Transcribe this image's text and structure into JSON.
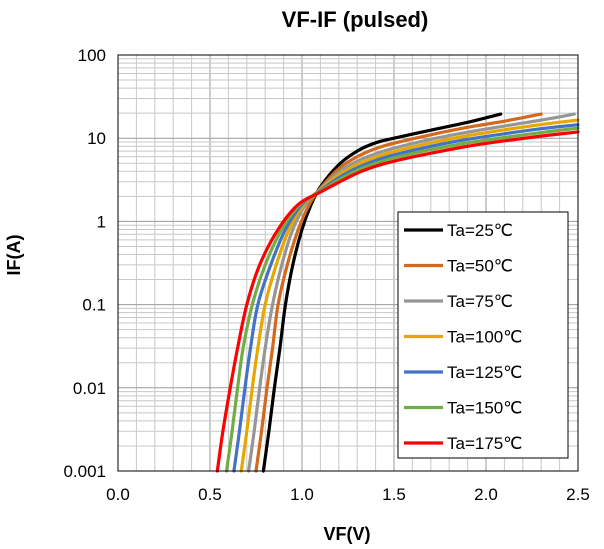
{
  "chart_data": {
    "type": "line",
    "title": "VF-IF (pulsed)",
    "xlabel": "VF(V)",
    "ylabel": "IF(A)",
    "xlim": [
      0.0,
      2.5
    ],
    "ylim": [
      0.001,
      100
    ],
    "yscale": "log",
    "grid": true,
    "legend_position": "lower-right",
    "x_ticks": [
      "0.0",
      "0.5",
      "1.0",
      "1.5",
      "2.0",
      "2.5"
    ],
    "y_ticks": [
      "0.001",
      "0.01",
      "0.1",
      "1",
      "10",
      "100"
    ],
    "series": [
      {
        "name": "Ta=25℃",
        "color": "#000000",
        "points": [
          [
            0.79,
            0.001
          ],
          [
            0.82,
            0.003
          ],
          [
            0.85,
            0.01
          ],
          [
            0.88,
            0.03
          ],
          [
            0.91,
            0.1
          ],
          [
            0.95,
            0.3
          ],
          [
            1.0,
            0.8
          ],
          [
            1.05,
            1.6
          ],
          [
            1.1,
            2.6
          ],
          [
            1.2,
            4.8
          ],
          [
            1.3,
            7.0
          ],
          [
            1.4,
            8.8
          ],
          [
            1.5,
            10.0
          ],
          [
            1.7,
            12.5
          ],
          [
            1.9,
            15.5
          ],
          [
            2.08,
            19.5
          ]
        ]
      },
      {
        "name": "Ta=50℃",
        "color": "#d2691e",
        "points": [
          [
            0.75,
            0.001
          ],
          [
            0.78,
            0.003
          ],
          [
            0.81,
            0.01
          ],
          [
            0.84,
            0.03
          ],
          [
            0.87,
            0.1
          ],
          [
            0.92,
            0.3
          ],
          [
            0.98,
            0.8
          ],
          [
            1.04,
            1.6
          ],
          [
            1.1,
            2.5
          ],
          [
            1.2,
            4.3
          ],
          [
            1.3,
            6.0
          ],
          [
            1.4,
            7.5
          ],
          [
            1.5,
            8.7
          ],
          [
            1.7,
            11.0
          ],
          [
            1.9,
            13.5
          ],
          [
            2.1,
            16.0
          ],
          [
            2.3,
            19.5
          ]
        ]
      },
      {
        "name": "Ta=75℃",
        "color": "#969696",
        "points": [
          [
            0.71,
            0.001
          ],
          [
            0.74,
            0.003
          ],
          [
            0.77,
            0.01
          ],
          [
            0.8,
            0.03
          ],
          [
            0.84,
            0.1
          ],
          [
            0.89,
            0.3
          ],
          [
            0.95,
            0.8
          ],
          [
            1.02,
            1.6
          ],
          [
            1.1,
            2.45
          ],
          [
            1.2,
            3.9
          ],
          [
            1.3,
            5.3
          ],
          [
            1.4,
            6.5
          ],
          [
            1.5,
            7.6
          ],
          [
            1.7,
            9.7
          ],
          [
            1.9,
            11.8
          ],
          [
            2.1,
            14.0
          ],
          [
            2.3,
            16.5
          ],
          [
            2.48,
            19.5
          ]
        ]
      },
      {
        "name": "Ta=100℃",
        "color": "#e6a800",
        "points": [
          [
            0.67,
            0.001
          ],
          [
            0.7,
            0.003
          ],
          [
            0.73,
            0.01
          ],
          [
            0.76,
            0.03
          ],
          [
            0.8,
            0.1
          ],
          [
            0.86,
            0.3
          ],
          [
            0.93,
            0.8
          ],
          [
            1.01,
            1.6
          ],
          [
            1.1,
            2.4
          ],
          [
            1.2,
            3.6
          ],
          [
            1.3,
            4.8
          ],
          [
            1.4,
            5.9
          ],
          [
            1.5,
            6.9
          ],
          [
            1.7,
            8.8
          ],
          [
            1.9,
            10.7
          ],
          [
            2.1,
            12.6
          ],
          [
            2.3,
            14.6
          ],
          [
            2.5,
            16.5
          ]
        ]
      },
      {
        "name": "Ta=125℃",
        "color": "#4472c4",
        "points": [
          [
            0.63,
            0.001
          ],
          [
            0.66,
            0.003
          ],
          [
            0.69,
            0.01
          ],
          [
            0.72,
            0.03
          ],
          [
            0.76,
            0.1
          ],
          [
            0.83,
            0.3
          ],
          [
            0.91,
            0.8
          ],
          [
            1.0,
            1.6
          ],
          [
            1.1,
            2.35
          ],
          [
            1.2,
            3.35
          ],
          [
            1.3,
            4.4
          ],
          [
            1.4,
            5.4
          ],
          [
            1.5,
            6.3
          ],
          [
            1.7,
            8.0
          ],
          [
            1.9,
            9.7
          ],
          [
            2.1,
            11.3
          ],
          [
            2.3,
            13.0
          ],
          [
            2.5,
            14.5
          ]
        ]
      },
      {
        "name": "Ta=150℃",
        "color": "#70ad47",
        "points": [
          [
            0.59,
            0.001
          ],
          [
            0.62,
            0.003
          ],
          [
            0.65,
            0.01
          ],
          [
            0.68,
            0.03
          ],
          [
            0.73,
            0.1
          ],
          [
            0.8,
            0.3
          ],
          [
            0.89,
            0.8
          ],
          [
            0.99,
            1.6
          ],
          [
            1.1,
            2.3
          ],
          [
            1.2,
            3.15
          ],
          [
            1.3,
            4.1
          ],
          [
            1.4,
            5.0
          ],
          [
            1.5,
            5.8
          ],
          [
            1.7,
            7.3
          ],
          [
            1.9,
            8.8
          ],
          [
            2.1,
            10.2
          ],
          [
            2.3,
            11.7
          ],
          [
            2.5,
            13.2
          ]
        ]
      },
      {
        "name": "Ta=175℃",
        "color": "#ff0000",
        "points": [
          [
            0.54,
            0.001
          ],
          [
            0.57,
            0.003
          ],
          [
            0.61,
            0.01
          ],
          [
            0.65,
            0.03
          ],
          [
            0.7,
            0.1
          ],
          [
            0.77,
            0.3
          ],
          [
            0.87,
            0.8
          ],
          [
            0.98,
            1.6
          ],
          [
            1.1,
            2.25
          ],
          [
            1.2,
            2.95
          ],
          [
            1.3,
            3.8
          ],
          [
            1.4,
            4.6
          ],
          [
            1.5,
            5.3
          ],
          [
            1.7,
            6.6
          ],
          [
            1.9,
            8.0
          ],
          [
            2.1,
            9.3
          ],
          [
            2.3,
            10.6
          ],
          [
            2.5,
            11.9
          ]
        ]
      }
    ]
  }
}
